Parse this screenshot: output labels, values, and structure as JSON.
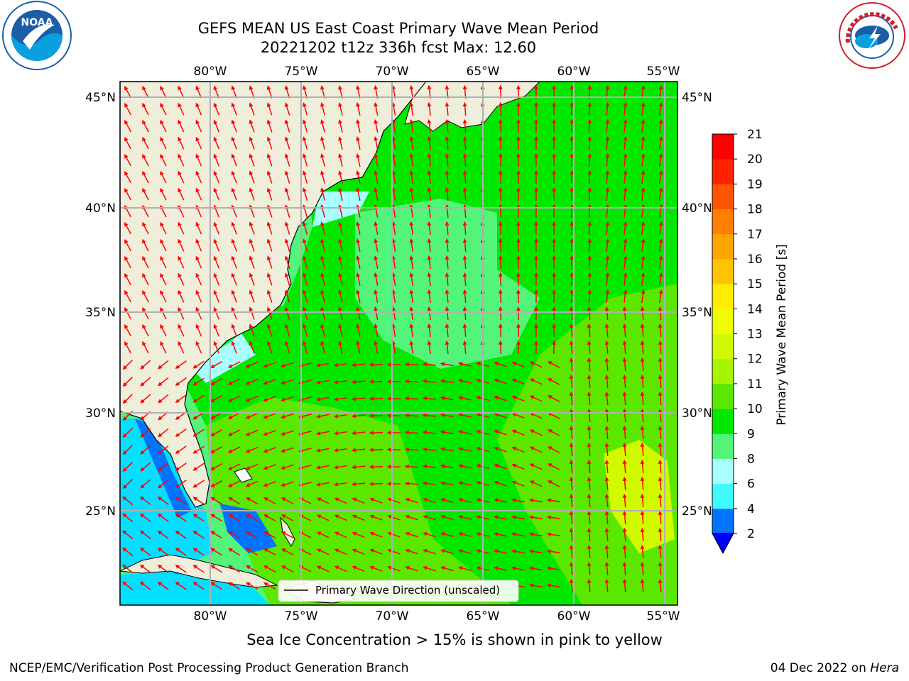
{
  "title_line1": "GEFS MEAN US East Coast Primary Wave Mean Period",
  "title_line2": "20221202 t12z 336h fcst   Max: 12.60",
  "logos": {
    "left": {
      "name": "noaa-logo",
      "text": "NOAA",
      "ring_text": "NATIONAL OCEANIC AND ATMOSPHERIC ADMINISTRATION · U.S. DEPARTMENT OF COMMERCE"
    },
    "right": {
      "name": "nws-logo",
      "ring_text": "NATIONAL WEATHER SERVICE"
    }
  },
  "map": {
    "lon_ticks": [
      "80°W",
      "75°W",
      "70°W",
      "65°W",
      "60°W",
      "55°W"
    ],
    "lat_ticks": [
      "45°N",
      "40°N",
      "35°N",
      "30°N",
      "25°N"
    ],
    "lon_range": [
      -85,
      -54.5
    ],
    "lat_range": [
      20.5,
      46
    ],
    "arrow_color": "#ff0000",
    "land_color": "#efeedb",
    "legend_label": "Primary Wave Direction (unscaled)"
  },
  "colorbar": {
    "label": "Primary Wave Mean Period [s]",
    "ticks": [
      "2",
      "4",
      "6",
      "8",
      "9",
      "10",
      "11",
      "12",
      "13",
      "14",
      "15",
      "16",
      "17",
      "18",
      "19",
      "20",
      "21"
    ],
    "colors": [
      "#0073ff",
      "#00e1ff",
      "#3ffaff",
      "#a8ffff",
      "#52f57a",
      "#00e800",
      "#5ae800",
      "#a6f500",
      "#d1fa00",
      "#f0ff00",
      "#ffed00",
      "#ffc400",
      "#ffa500",
      "#ff8000",
      "#ff5500",
      "#ff2200",
      "#ff0000"
    ],
    "extend_color": "#0000ff"
  },
  "caption": "Sea Ice Concentration > 15% is shown in pink to yellow",
  "footer_left": "NCEP/EMC/Verification Post Processing Product Generation Branch",
  "footer_right_prefix": "04 Dec 2022 on ",
  "footer_right_host": "Hera"
}
